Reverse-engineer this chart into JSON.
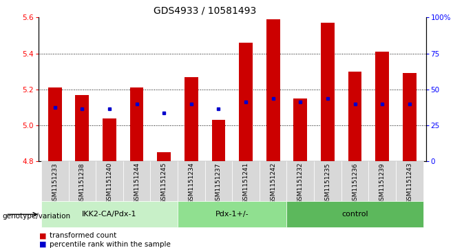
{
  "title": "GDS4933 / 10581493",
  "samples": [
    "GSM1151233",
    "GSM1151238",
    "GSM1151240",
    "GSM1151244",
    "GSM1151245",
    "GSM1151234",
    "GSM1151237",
    "GSM1151241",
    "GSM1151242",
    "GSM1151232",
    "GSM1151235",
    "GSM1151236",
    "GSM1151239",
    "GSM1151243"
  ],
  "bar_tops": [
    5.21,
    5.17,
    5.04,
    5.21,
    4.85,
    5.27,
    5.03,
    5.46,
    5.59,
    5.15,
    5.57,
    5.3,
    5.41,
    5.29
  ],
  "blue_values": [
    5.1,
    5.09,
    5.09,
    5.12,
    5.07,
    5.12,
    5.09,
    5.13,
    5.15,
    5.13,
    5.15,
    5.12,
    5.12,
    5.12
  ],
  "bar_bottom": 4.8,
  "ylim_left": [
    4.8,
    5.6
  ],
  "ylim_right": [
    0,
    100
  ],
  "yticks_left": [
    4.8,
    5.0,
    5.2,
    5.4,
    5.6
  ],
  "yticks_right": [
    0,
    25,
    50,
    75,
    100
  ],
  "ytick_labels_right": [
    "0",
    "25",
    "50",
    "75",
    "100%"
  ],
  "group_defs": [
    {
      "label": "IKK2-CA/Pdx-1",
      "start": 0,
      "end": 4,
      "color": "#c8f0c8"
    },
    {
      "label": "Pdx-1+/-",
      "start": 5,
      "end": 8,
      "color": "#90e090"
    },
    {
      "label": "control",
      "start": 9,
      "end": 13,
      "color": "#5cb85c"
    }
  ],
  "group_label": "genotype/variation",
  "bar_color": "#cc0000",
  "blue_color": "#0000cc",
  "sample_bg_color": "#d8d8d8",
  "title_fontsize": 10,
  "tick_fontsize": 7.5,
  "sample_fontsize": 6.5,
  "group_fontsize": 8,
  "legend_fontsize": 7.5
}
